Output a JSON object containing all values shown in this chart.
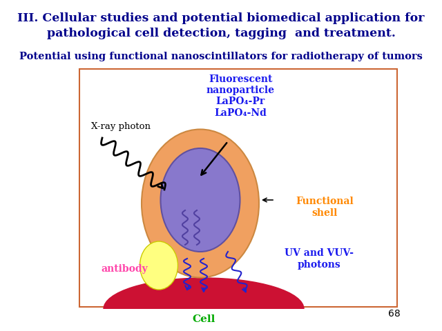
{
  "title_line1": "III. Cellular studies and potential biomedical application for",
  "title_line2": "pathological cell detection, tagging  and treatment.",
  "subtitle": "Potential using functional nanoscintillators for radiotherapy of tumors",
  "title_color": "#00008B",
  "subtitle_color": "#00008B",
  "bg_color": "#ffffff",
  "box_edge_color": "#cc6633",
  "label_fluorescent_1": "Fluorescent",
  "label_fluorescent_2": "nanoparticle",
  "label_fluorescent_3": "LaPO₄-Pr",
  "label_fluorescent_4": "LaPO₄-Nd",
  "label_functional_1": "Functional",
  "label_functional_2": "shell",
  "label_uvvuv_1": "UV and VUV-",
  "label_uvvuv_2": "photons",
  "label_xray": "X-ray photon",
  "label_antibody": "antibody",
  "label_cell": "Cell",
  "label_page": "68",
  "color_fluorescent": "#1a1aee",
  "color_functional": "#ff8800",
  "color_uvvuv": "#1a1aee",
  "color_xray": "#000000",
  "color_antibody": "#ff44aa",
  "color_cell": "#00aa00",
  "outer_ellipse_color": "#f0a060",
  "inner_ellipse_color": "#8878cc",
  "antibody_color": "#ffff80",
  "cell_color": "#cc1133"
}
